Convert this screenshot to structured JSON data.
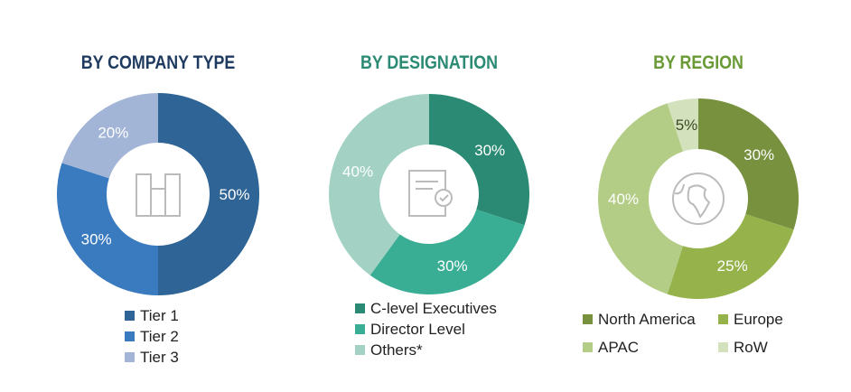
{
  "chart_data": [
    {
      "type": "pie",
      "title": "BY COMPANY TYPE",
      "title_color": "#1f3a5f",
      "donut": true,
      "icon": "buildings-icon",
      "categories": [
        "Tier 1",
        "Tier 2",
        "Tier 3"
      ],
      "values": [
        50,
        30,
        20
      ],
      "labels": [
        "50%",
        "30%",
        "20%"
      ],
      "colors": [
        "#2e6496",
        "#3a7abf",
        "#a3b5d6"
      ],
      "label_colors": [
        "#ffffff",
        "#ffffff",
        "#ffffff"
      ],
      "legend": "bottom"
    },
    {
      "type": "pie",
      "title": "BY DESIGNATION",
      "title_color": "#2a8a73",
      "donut": true,
      "icon": "certificate-icon",
      "categories": [
        "C-level Executives",
        "Director Level",
        "Others*"
      ],
      "values": [
        30,
        30,
        40
      ],
      "labels": [
        "30%",
        "30%",
        "40%"
      ],
      "colors": [
        "#2a8a73",
        "#3aae94",
        "#a3d2c4"
      ],
      "label_colors": [
        "#ffffff",
        "#ffffff",
        "#ffffff"
      ],
      "legend": "bottom"
    },
    {
      "type": "pie",
      "title": "BY REGION",
      "title_color": "#6a9a35",
      "donut": true,
      "icon": "globe-icon",
      "categories": [
        "North America",
        "Europe",
        "APAC",
        "RoW"
      ],
      "values": [
        30,
        25,
        40,
        5
      ],
      "labels": [
        "30%",
        "25%",
        "40%",
        "5%"
      ],
      "colors": [
        "#77913e",
        "#95b24b",
        "#b4cd86",
        "#d3e2bd"
      ],
      "label_colors": [
        "#ffffff",
        "#ffffff",
        "#ffffff",
        "#3a4a20"
      ],
      "legend": "bottom"
    }
  ]
}
